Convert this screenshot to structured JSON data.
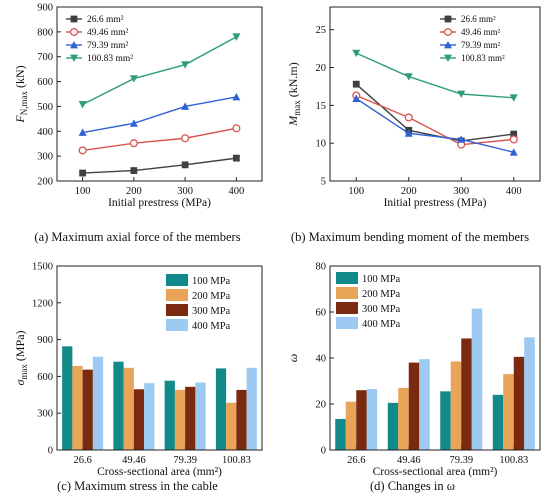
{
  "captions": [
    "(a) Maximum axial force of the members",
    "(b) Maximum bending moment of the members",
    "(c) Maximum stress in the cable",
    "(d) Changes in ω"
  ],
  "chart_data": [
    {
      "type": "line",
      "xlabel": "Initial prestress (MPa)",
      "ylabel": {
        "main": "F",
        "sub": "N,max",
        "unit": " (kN)"
      },
      "x": [
        100,
        200,
        300,
        400
      ],
      "xticks": [
        100,
        200,
        300,
        400
      ],
      "xlim": [
        50,
        450
      ],
      "ylim": [
        200,
        900
      ],
      "yticks": [
        200,
        300,
        400,
        500,
        600,
        700,
        800,
        900
      ],
      "legend": "top-left",
      "series": [
        {
          "name": "26.6 mm²",
          "marker": "square",
          "color": "#404040",
          "values": [
            232,
            242,
            265,
            292
          ]
        },
        {
          "name": "49.46 mm²",
          "marker": "circle",
          "color": "#d9534f",
          "values": [
            323,
            352,
            372,
            412
          ]
        },
        {
          "name": "79.39 mm²",
          "marker": "triangle-up",
          "color": "#2f62d6",
          "values": [
            395,
            432,
            500,
            538
          ]
        },
        {
          "name": "100.83 mm²",
          "marker": "triangle-down",
          "color": "#2e9e74",
          "values": [
            508,
            612,
            668,
            780
          ]
        }
      ]
    },
    {
      "type": "line",
      "xlabel": "Initial prestress (MPa)",
      "ylabel": {
        "main": "M",
        "sub": "max",
        "unit": " (kN.m)"
      },
      "x": [
        100,
        200,
        300,
        400
      ],
      "xticks": [
        100,
        200,
        300,
        400
      ],
      "xlim": [
        50,
        450
      ],
      "ylim": [
        5,
        28
      ],
      "yticks": [
        5,
        10,
        15,
        20,
        25
      ],
      "legend": "top-right",
      "series": [
        {
          "name": "26.6 mm²",
          "marker": "square",
          "color": "#404040",
          "values": [
            17.8,
            11.7,
            10.3,
            11.2
          ]
        },
        {
          "name": "49.46 mm²",
          "marker": "circle",
          "color": "#d9534f",
          "values": [
            16.3,
            13.4,
            9.8,
            10.5
          ]
        },
        {
          "name": "79.39 mm²",
          "marker": "triangle-up",
          "color": "#2f62d6",
          "values": [
            15.9,
            11.3,
            10.5,
            8.8
          ]
        },
        {
          "name": "100.83 mm²",
          "marker": "triangle-down",
          "color": "#2e9e74",
          "values": [
            21.9,
            18.8,
            16.5,
            16.0
          ]
        }
      ]
    },
    {
      "type": "bar",
      "xlabel": "Cross-sectional area (mm²)",
      "ylabel": {
        "main": "σ",
        "sub": "max",
        "unit": " (MPa)"
      },
      "categories": [
        "26.6",
        "49.46",
        "79.39",
        "100.83"
      ],
      "ylim": [
        0,
        1500
      ],
      "yticks": [
        0,
        300,
        600,
        900,
        1200,
        1500
      ],
      "legend": "top-right",
      "series": [
        {
          "name": "100 MPa",
          "color": "#138a8a",
          "values": [
            845,
            720,
            565,
            665
          ]
        },
        {
          "name": "200 MPa",
          "color": "#e8a458",
          "values": [
            685,
            670,
            490,
            385
          ]
        },
        {
          "name": "300 MPa",
          "color": "#7a2a0e",
          "values": [
            655,
            495,
            515,
            490
          ]
        },
        {
          "name": "400 MPa",
          "color": "#9ccaf3",
          "values": [
            760,
            545,
            550,
            670
          ]
        }
      ]
    },
    {
      "type": "bar",
      "xlabel": "Cross-sectional area (mm²)",
      "ylabel": {
        "main": "ω",
        "sub": "",
        "unit": ""
      },
      "categories": [
        "26.6",
        "49.46",
        "79.39",
        "100.83"
      ],
      "ylim": [
        0,
        80
      ],
      "yticks": [
        0,
        20,
        40,
        60,
        80
      ],
      "legend": "top-left",
      "series": [
        {
          "name": "100 MPa",
          "color": "#138a8a",
          "values": [
            13.5,
            20.5,
            25.5,
            24
          ]
        },
        {
          "name": "200 MPa",
          "color": "#e8a458",
          "values": [
            21,
            27,
            38.5,
            33
          ]
        },
        {
          "name": "300 MPa",
          "color": "#7a2a0e",
          "values": [
            26,
            38,
            48.5,
            40.5
          ]
        },
        {
          "name": "400 MPa",
          "color": "#9ccaf3",
          "values": [
            26.5,
            39.5,
            61.5,
            49
          ]
        }
      ]
    }
  ]
}
